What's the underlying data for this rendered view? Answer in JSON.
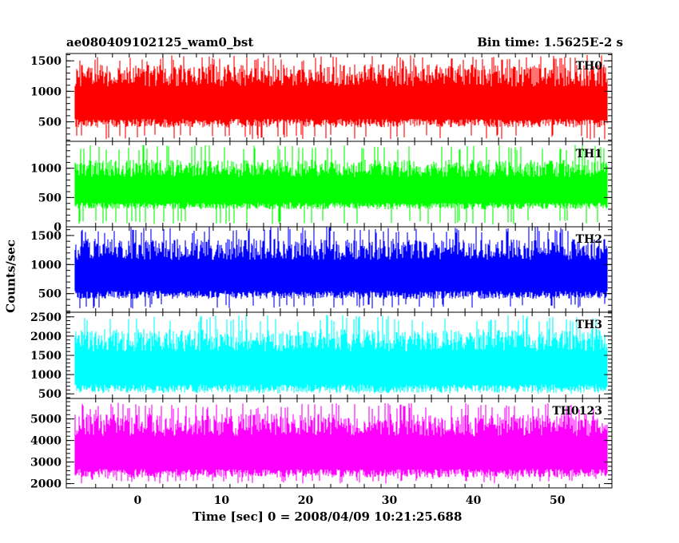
{
  "title": "ae080409102125_wam0_bst",
  "bin_time": "Bin time: 1.5625E-2 s",
  "xlabel": "Time [sec] 0 = 2008/04/09 10:21:25.688",
  "ylabel": "Counts/sec",
  "chart_data": {
    "type": "line",
    "x_range": [
      -8.5,
      56.5
    ],
    "x_data_span": [
      -7.5,
      56
    ],
    "x_ticks": [
      0,
      10,
      20,
      30,
      40,
      50
    ],
    "bin_time_s": 0.015625,
    "grid": false,
    "panels": [
      {
        "name": "TH0",
        "color": "#ff0000",
        "ylim": [
          180,
          1620
        ],
        "yticks": [
          500,
          1000,
          1500
        ],
        "band_mean": 800,
        "band_spread": 280,
        "low_extreme": 210,
        "high_extreme": 1600
      },
      {
        "name": "TH1",
        "color": "#00ff00",
        "ylim": [
          0,
          1460
        ],
        "yticks": [
          0,
          500,
          1000
        ],
        "band_mean": 620,
        "band_spread": 230,
        "low_extreme": 40,
        "high_extreme": 1400
      },
      {
        "name": "TH2",
        "color": "#0000ff",
        "ylim": [
          180,
          1650
        ],
        "yticks": [
          500,
          1000,
          1500
        ],
        "band_mean": 800,
        "band_spread": 280,
        "low_extreme": 240,
        "high_extreme": 1650
      },
      {
        "name": "TH3",
        "color": "#00ffff",
        "ylim": [
          380,
          2620
        ],
        "yticks": [
          500,
          1000,
          1500,
          2000,
          2500
        ],
        "band_mean": 1150,
        "band_spread": 450,
        "low_extreme": 500,
        "high_extreme": 2550
      },
      {
        "name": "TH0123",
        "color": "#ff00ff",
        "ylim": [
          1800,
          5950
        ],
        "yticks": [
          2000,
          3000,
          4000,
          5000
        ],
        "band_mean": 3400,
        "band_spread": 800,
        "low_extreme": 2000,
        "high_extreme": 5750
      }
    ]
  }
}
